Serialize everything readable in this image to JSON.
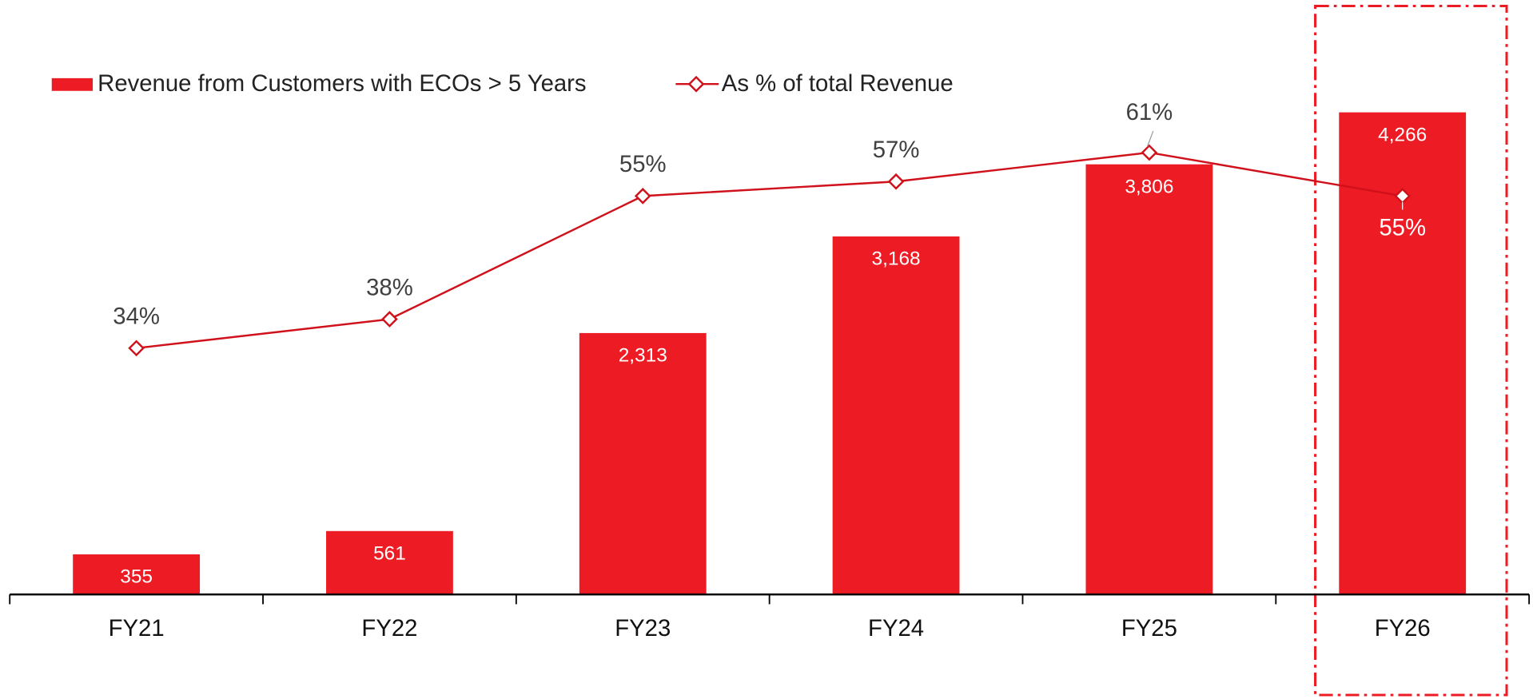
{
  "chart_data": {
    "type": "bar_line",
    "categories": [
      "FY21",
      "FY22",
      "FY23",
      "FY24",
      "FY25",
      "FY26"
    ],
    "series": [
      {
        "name": "Revenue from Customers with ECOs > 5 Years",
        "color": "#ed1c24",
        "type": "bar",
        "values": [
          355,
          561,
          2313,
          3168,
          3806,
          4266
        ],
        "value_labels": [
          "355",
          "561",
          "2,313",
          "3,168",
          "3,806",
          "4,266"
        ]
      },
      {
        "name": "As % of total Revenue",
        "color": "#d0101a",
        "type": "line",
        "axis": "y2",
        "values": [
          34,
          38,
          55,
          57,
          61,
          55
        ],
        "value_labels": [
          "34%",
          "38%",
          "55%",
          "57%",
          "61%",
          "55%"
        ]
      }
    ],
    "ylim": [
      0,
      5000
    ],
    "y2lim": [
      0,
      78
    ],
    "legend": "top-left"
  }
}
